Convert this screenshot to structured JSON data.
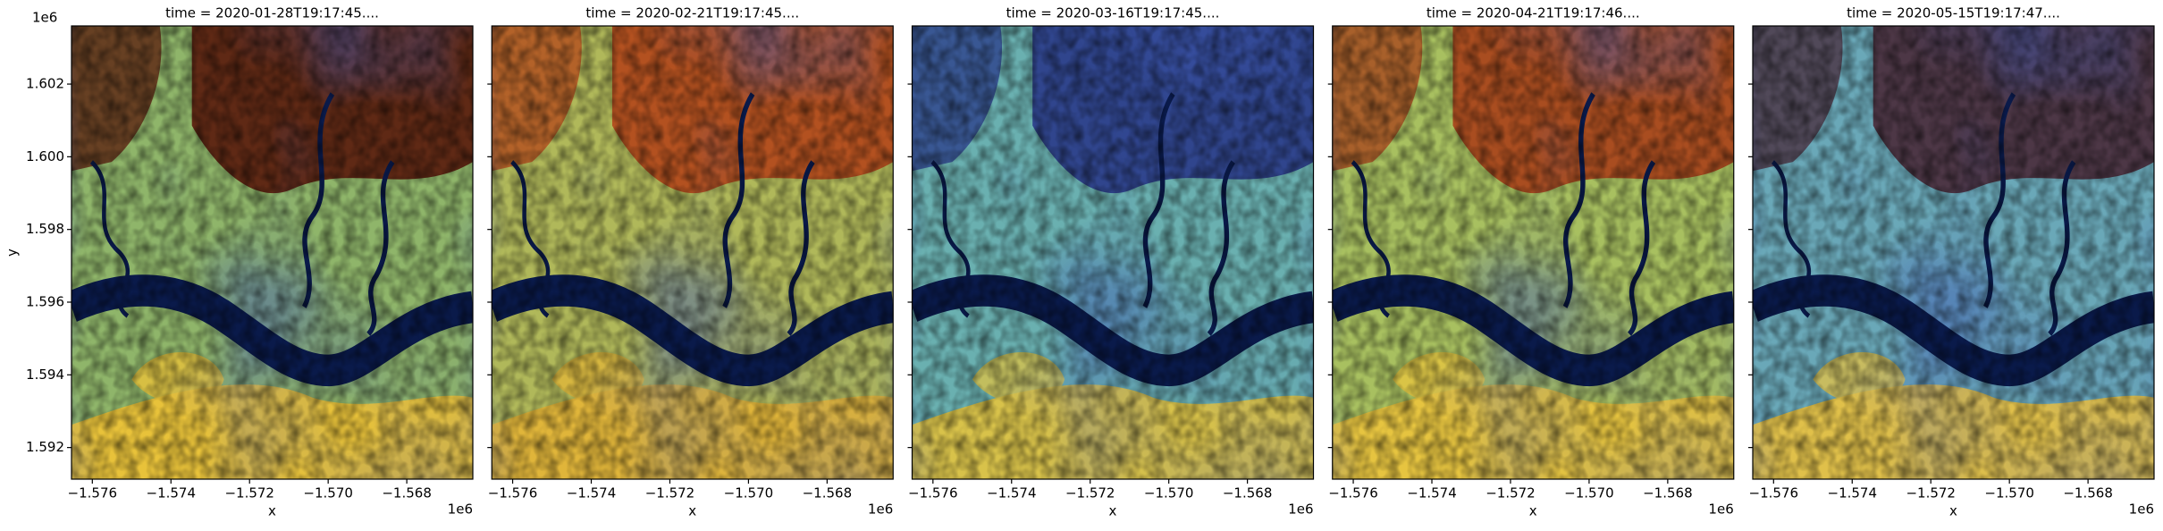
{
  "chart_data": [
    {
      "type": "image",
      "title": "time = 2020-01-28T19:17:45....",
      "x_label": "x",
      "y_label": "y",
      "x_offset": "1e6",
      "y_offset": "1e6",
      "xlim": [
        -1576530,
        -1566320
      ],
      "ylim": [
        1591130,
        1603600
      ],
      "xticks": [
        {
          "value": -1576000,
          "label": "−1.576"
        },
        {
          "value": -1574000,
          "label": "−1.574"
        },
        {
          "value": -1572000,
          "label": "−1.572"
        },
        {
          "value": -1570000,
          "label": "−1.570"
        },
        {
          "value": -1568000,
          "label": "−1.568"
        }
      ],
      "yticks": [
        {
          "value": 1592000,
          "label": "1.592"
        },
        {
          "value": 1594000,
          "label": "1.594"
        },
        {
          "value": 1596000,
          "label": "1.596"
        },
        {
          "value": 1598000,
          "label": "1.598"
        },
        {
          "value": 1600000,
          "label": "1.600"
        },
        {
          "value": 1602000,
          "label": "1.602"
        }
      ]
    },
    {
      "type": "image",
      "title": "time = 2020-02-21T19:17:45....",
      "x_label": "x",
      "x_offset": "1e6",
      "xlim": [
        -1576530,
        -1566320
      ],
      "ylim": [
        1591130,
        1603600
      ],
      "xticks": [
        {
          "value": -1576000,
          "label": "−1.576"
        },
        {
          "value": -1574000,
          "label": "−1.574"
        },
        {
          "value": -1572000,
          "label": "−1.572"
        },
        {
          "value": -1570000,
          "label": "−1.570"
        },
        {
          "value": -1568000,
          "label": "−1.568"
        }
      ],
      "yticks": [
        1592000,
        1594000,
        1596000,
        1598000,
        1600000,
        1602000
      ]
    },
    {
      "type": "image",
      "title": "time = 2020-03-16T19:17:45....",
      "x_label": "x",
      "x_offset": "1e6",
      "xlim": [
        -1576530,
        -1566320
      ],
      "ylim": [
        1591130,
        1603600
      ],
      "xticks": [
        {
          "value": -1576000,
          "label": "−1.576"
        },
        {
          "value": -1574000,
          "label": "−1.574"
        },
        {
          "value": -1572000,
          "label": "−1.572"
        },
        {
          "value": -1570000,
          "label": "−1.570"
        },
        {
          "value": -1568000,
          "label": "−1.568"
        }
      ],
      "yticks": [
        1592000,
        1594000,
        1596000,
        1598000,
        1600000,
        1602000
      ]
    },
    {
      "type": "image",
      "title": "time = 2020-04-21T19:17:46....",
      "x_label": "x",
      "x_offset": "1e6",
      "xlim": [
        -1576530,
        -1566320
      ],
      "ylim": [
        1591130,
        1603600
      ],
      "xticks": [
        {
          "value": -1576000,
          "label": "−1.576"
        },
        {
          "value": -1574000,
          "label": "−1.574"
        },
        {
          "value": -1572000,
          "label": "−1.572"
        },
        {
          "value": -1570000,
          "label": "−1.570"
        },
        {
          "value": -1568000,
          "label": "−1.568"
        }
      ],
      "yticks": [
        1592000,
        1594000,
        1596000,
        1598000,
        1600000,
        1602000
      ]
    },
    {
      "type": "image",
      "title": "time = 2020-05-15T19:17:47....",
      "x_label": "x",
      "x_offset": "1e6",
      "xlim": [
        -1576530,
        -1566320
      ],
      "ylim": [
        1591130,
        1603600
      ],
      "xticks": [
        {
          "value": -1576000,
          "label": "−1.576"
        },
        {
          "value": -1574000,
          "label": "−1.574"
        },
        {
          "value": -1572000,
          "label": "−1.572"
        },
        {
          "value": -1570000,
          "label": "−1.570"
        },
        {
          "value": -1568000,
          "label": "−1.568"
        }
      ],
      "yticks": [
        1592000,
        1594000,
        1596000,
        1598000,
        1600000,
        1602000
      ]
    }
  ]
}
